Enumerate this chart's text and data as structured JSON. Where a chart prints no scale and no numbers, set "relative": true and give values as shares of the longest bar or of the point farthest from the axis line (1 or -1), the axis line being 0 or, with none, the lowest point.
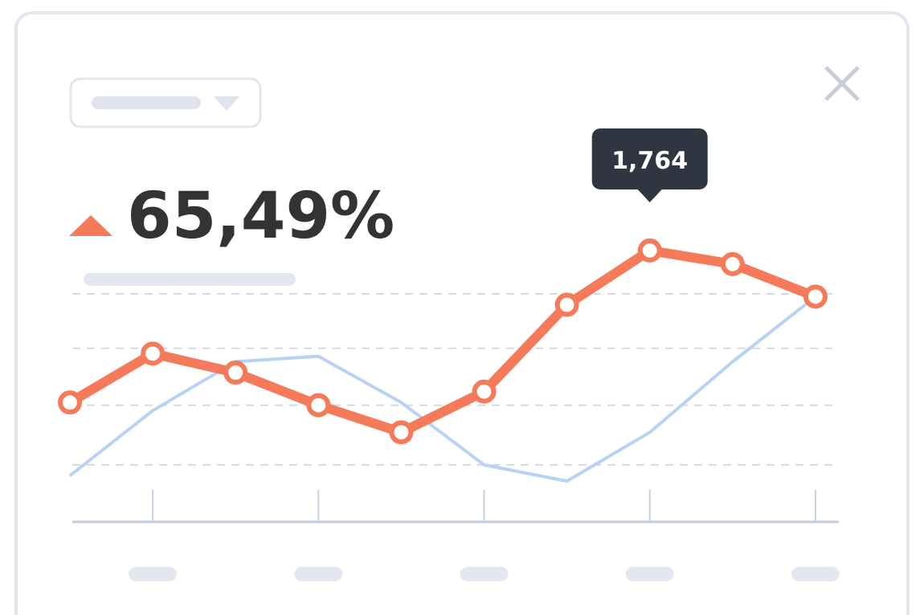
{
  "chart_data": {
    "type": "line",
    "relative": true,
    "categories": [
      null,
      null,
      null,
      null,
      null,
      null,
      null,
      null,
      null,
      null
    ],
    "series": [
      {
        "color": "#b8d2f5",
        "values": [
          0.17,
          0.41,
          0.59,
          0.61,
          0.44,
          0.21,
          0.15,
          0.33,
          0.59,
          0.83
        ]
      },
      {
        "color": "#f47a5a",
        "marker": "circle",
        "values": [
          0.44,
          0.62,
          0.55,
          0.43,
          0.33,
          0.48,
          0.8,
          1.0,
          0.95,
          0.83
        ]
      }
    ],
    "ref_lines": [
      {
        "axis": "y",
        "value": 0.64,
        "line_style": "dashed",
        "color": "#d5dae6"
      },
      {
        "axis": "y",
        "value": 0.43,
        "line_style": "dashed",
        "color": "#d5dae6"
      },
      {
        "axis": "y",
        "value": 0.21,
        "line_style": "dashed",
        "color": "#d5dae6"
      },
      {
        "axis": "y",
        "value": 0.84,
        "line_style": "dashed",
        "color": "#d5dae6"
      }
    ],
    "annotations": [
      "65,49%",
      "1,764"
    ]
  }
}
